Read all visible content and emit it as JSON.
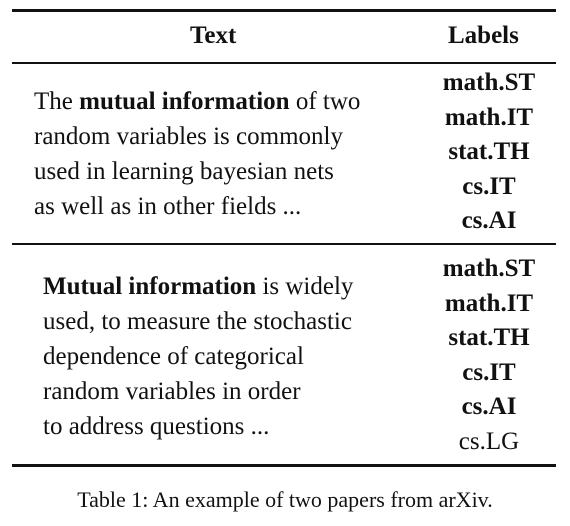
{
  "table": {
    "headers": {
      "text": "Text",
      "labels": "Labels"
    },
    "rows": [
      {
        "text_lines": [
          {
            "pre": "The ",
            "bold": "mutual information",
            "post": " of two"
          },
          {
            "pre": "random variables is commonly",
            "bold": "",
            "post": ""
          },
          {
            "pre": "used in learning bayesian nets",
            "bold": "",
            "post": ""
          },
          {
            "pre": "as well as in other fields ...",
            "bold": "",
            "post": ""
          }
        ],
        "labels": [
          {
            "name": "math.ST",
            "bold": true
          },
          {
            "name": "math.IT",
            "bold": true
          },
          {
            "name": "stat.TH",
            "bold": true
          },
          {
            "name": "cs.IT",
            "bold": true
          },
          {
            "name": "cs.AI",
            "bold": true
          }
        ]
      },
      {
        "text_lines": [
          {
            "pre": "",
            "bold": "Mutual information",
            "post": " is widely"
          },
          {
            "pre": "used, to measure the stochastic",
            "bold": "",
            "post": ""
          },
          {
            "pre": "dependence of categorical",
            "bold": "",
            "post": ""
          },
          {
            "pre": "random variables in order",
            "bold": "",
            "post": ""
          },
          {
            "pre": "to address questions ...",
            "bold": "",
            "post": ""
          }
        ],
        "labels": [
          {
            "name": "math.ST",
            "bold": true
          },
          {
            "name": "math.IT",
            "bold": true
          },
          {
            "name": "stat.TH",
            "bold": true
          },
          {
            "name": "cs.IT",
            "bold": true
          },
          {
            "name": "cs.AI",
            "bold": true
          },
          {
            "name": "cs.LG",
            "bold": false
          }
        ]
      }
    ]
  },
  "caption": "Table 1: An example of two papers from arXiv."
}
